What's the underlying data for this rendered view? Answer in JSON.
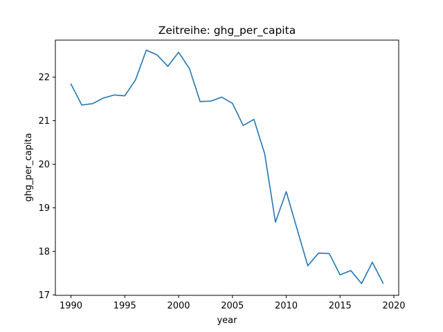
{
  "chart_data": {
    "type": "line",
    "title": "Zeitreihe: ghg_per_capita",
    "xlabel": "year",
    "ylabel": "ghg_per_capita",
    "xlim": [
      1988.55,
      2020.45
    ],
    "ylim": [
      16.99,
      22.85
    ],
    "xticks": [
      1990,
      1995,
      2000,
      2005,
      2010,
      2015,
      2020
    ],
    "yticks": [
      17,
      18,
      19,
      20,
      21,
      22
    ],
    "grid": false,
    "series": [
      {
        "color": "#1f77b4",
        "x": [
          1990,
          1991,
          1992,
          1993,
          1994,
          1995,
          1996,
          1997,
          1998,
          1999,
          2000,
          2001,
          2002,
          2003,
          2004,
          2005,
          2006,
          2007,
          2008,
          2009,
          2010,
          2011,
          2012,
          2013,
          2014,
          2015,
          2016,
          2017,
          2018,
          2019
        ],
        "y": [
          21.84,
          21.36,
          21.39,
          21.52,
          21.59,
          21.57,
          21.94,
          22.62,
          22.51,
          22.25,
          22.57,
          22.2,
          21.44,
          21.45,
          21.54,
          21.4,
          20.89,
          21.03,
          20.24,
          18.67,
          19.37,
          18.52,
          17.67,
          17.96,
          17.95,
          17.46,
          17.56,
          17.26,
          17.75,
          17.27
        ]
      }
    ]
  }
}
